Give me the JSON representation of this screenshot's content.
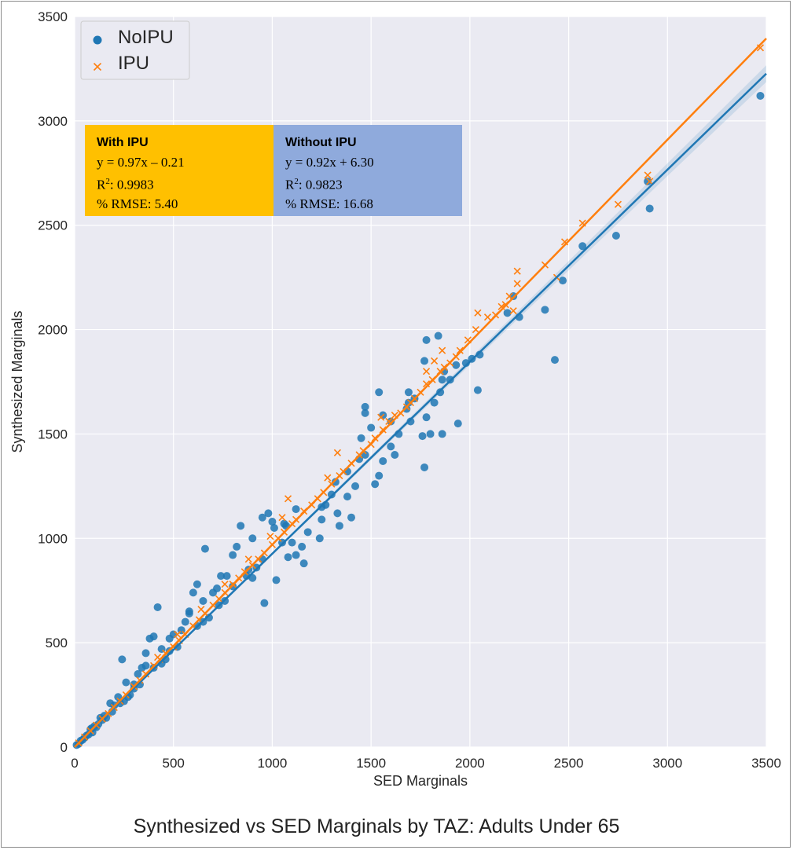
{
  "caption": "Synthesized vs SED Marginals by TAZ: Adults Under 65",
  "colors": {
    "plot_bg": "#eaeaf2",
    "grid": "#ffffff",
    "noipu": "#1f77b4",
    "ipu": "#ff7f0e",
    "box_ipu": "#ffc000",
    "box_noipu": "#8faadc"
  },
  "stats": {
    "ipu": {
      "header": "With IPU",
      "equation": "y = 0.97x – 0.21",
      "r2_prefix": "R",
      "r2_sup": "2",
      "r2_value": ": 0.9983",
      "rmse": "% RMSE: 5.40"
    },
    "noipu": {
      "header": "Without IPU",
      "equation": "y = 0.92x + 6.30",
      "r2_prefix": "R",
      "r2_sup": "2",
      "r2_value": ": 0.9823",
      "rmse": "% RMSE: 16.68"
    }
  },
  "chart_data": {
    "type": "scatter",
    "xlabel": "SED Marginals",
    "ylabel": "Synthesized Marginals",
    "xlim": [
      0,
      3500
    ],
    "ylim": [
      0,
      3500
    ],
    "xticks": [
      0,
      500,
      1000,
      1500,
      2000,
      2500,
      3000,
      3500
    ],
    "yticks": [
      0,
      500,
      1000,
      1500,
      2000,
      2500,
      3000,
      3500
    ],
    "grid": true,
    "legend_position": "top-left",
    "series": [
      {
        "name": "NoIPU",
        "marker": "circle",
        "fit": {
          "slope": 0.92,
          "intercept": 6.3
        },
        "points": [
          [
            3470,
            3120
          ],
          [
            2900,
            2710
          ],
          [
            2910,
            2580
          ],
          [
            2740,
            2450
          ],
          [
            2570,
            2400
          ],
          [
            2470,
            2235
          ],
          [
            2380,
            2095
          ],
          [
            2430,
            1855
          ],
          [
            2250,
            2060
          ],
          [
            2220,
            2160
          ],
          [
            2190,
            2080
          ],
          [
            2050,
            1880
          ],
          [
            2040,
            1710
          ],
          [
            2010,
            1860
          ],
          [
            1980,
            1840
          ],
          [
            1930,
            1830
          ],
          [
            1900,
            1760
          ],
          [
            1870,
            1800
          ],
          [
            1860,
            1760
          ],
          [
            1850,
            1700
          ],
          [
            1820,
            1650
          ],
          [
            1780,
            1950
          ],
          [
            1840,
            1970
          ],
          [
            1770,
            1850
          ],
          [
            1690,
            1700
          ],
          [
            1690,
            1650
          ],
          [
            1700,
            1560
          ],
          [
            1780,
            1580
          ],
          [
            1800,
            1500
          ],
          [
            1760,
            1490
          ],
          [
            1860,
            1500
          ],
          [
            1940,
            1550
          ],
          [
            1770,
            1340
          ],
          [
            1640,
            1500
          ],
          [
            1600,
            1440
          ],
          [
            1620,
            1400
          ],
          [
            1560,
            1370
          ],
          [
            1540,
            1300
          ],
          [
            1520,
            1260
          ],
          [
            1470,
            1600
          ],
          [
            1470,
            1630
          ],
          [
            1540,
            1700
          ],
          [
            1470,
            1400
          ],
          [
            1440,
            1380
          ],
          [
            1420,
            1250
          ],
          [
            1380,
            1200
          ],
          [
            1400,
            1100
          ],
          [
            1340,
            1060
          ],
          [
            1330,
            1120
          ],
          [
            1300,
            1210
          ],
          [
            1270,
            1160
          ],
          [
            1250,
            1090
          ],
          [
            1240,
            1000
          ],
          [
            1180,
            1030
          ],
          [
            1150,
            960
          ],
          [
            1120,
            920
          ],
          [
            1080,
            910
          ],
          [
            1070,
            1060
          ],
          [
            1050,
            980
          ],
          [
            1000,
            1080
          ],
          [
            950,
            1100
          ],
          [
            980,
            1120
          ],
          [
            1010,
            1050
          ],
          [
            950,
            900
          ],
          [
            920,
            860
          ],
          [
            900,
            810
          ],
          [
            870,
            820
          ],
          [
            840,
            1060
          ],
          [
            820,
            960
          ],
          [
            800,
            920
          ],
          [
            770,
            820
          ],
          [
            800,
            770
          ],
          [
            760,
            700
          ],
          [
            730,
            680
          ],
          [
            700,
            740
          ],
          [
            680,
            620
          ],
          [
            650,
            600
          ],
          [
            650,
            700
          ],
          [
            620,
            780
          ],
          [
            600,
            740
          ],
          [
            660,
            950
          ],
          [
            580,
            650
          ],
          [
            560,
            600
          ],
          [
            540,
            560
          ],
          [
            500,
            540
          ],
          [
            480,
            460
          ],
          [
            460,
            420
          ],
          [
            440,
            470
          ],
          [
            420,
            670
          ],
          [
            400,
            530
          ],
          [
            380,
            520
          ],
          [
            360,
            450
          ],
          [
            340,
            380
          ],
          [
            320,
            350
          ],
          [
            300,
            300
          ],
          [
            280,
            250
          ],
          [
            260,
            310
          ],
          [
            250,
            220
          ],
          [
            240,
            420
          ],
          [
            220,
            240
          ],
          [
            200,
            200
          ],
          [
            180,
            210
          ],
          [
            160,
            140
          ],
          [
            140,
            130
          ],
          [
            120,
            110
          ],
          [
            100,
            100
          ],
          [
            90,
            70
          ],
          [
            80,
            85
          ],
          [
            70,
            60
          ],
          [
            60,
            55
          ],
          [
            50,
            45
          ],
          [
            40,
            35
          ],
          [
            30,
            30
          ],
          [
            20,
            15
          ],
          [
            10,
            10
          ],
          [
            1020,
            800
          ],
          [
            960,
            690
          ],
          [
            1160,
            880
          ],
          [
            1100,
            980
          ],
          [
            1250,
            1150
          ],
          [
            1320,
            1270
          ],
          [
            1380,
            1320
          ],
          [
            1600,
            1560
          ],
          [
            1680,
            1620
          ],
          [
            1720,
            1670
          ],
          [
            1450,
            1480
          ],
          [
            1500,
            1530
          ],
          [
            1560,
            1590
          ],
          [
            1120,
            1140
          ],
          [
            1060,
            1070
          ],
          [
            900,
            1000
          ],
          [
            880,
            850
          ],
          [
            740,
            820
          ],
          [
            720,
            760
          ],
          [
            620,
            580
          ],
          [
            580,
            640
          ],
          [
            520,
            480
          ],
          [
            480,
            520
          ],
          [
            440,
            400
          ],
          [
            400,
            380
          ],
          [
            360,
            390
          ],
          [
            330,
            300
          ],
          [
            300,
            280
          ],
          [
            270,
            240
          ],
          [
            230,
            210
          ],
          [
            190,
            170
          ],
          [
            150,
            150
          ],
          [
            130,
            140
          ],
          [
            110,
            95
          ],
          [
            85,
            90
          ]
        ]
      },
      {
        "name": "IPU",
        "marker": "x",
        "fit": {
          "slope": 0.97,
          "intercept": -0.21
        },
        "points": [
          [
            3470,
            3350
          ],
          [
            2900,
            2740
          ],
          [
            2910,
            2710
          ],
          [
            2750,
            2600
          ],
          [
            2570,
            2510
          ],
          [
            2480,
            2420
          ],
          [
            2440,
            2250
          ],
          [
            2380,
            2310
          ],
          [
            2240,
            2220
          ],
          [
            2240,
            2280
          ],
          [
            2220,
            2090
          ],
          [
            2200,
            2160
          ],
          [
            2180,
            2120
          ],
          [
            2160,
            2110
          ],
          [
            2130,
            2070
          ],
          [
            2090,
            2060
          ],
          [
            2040,
            2080
          ],
          [
            2030,
            2000
          ],
          [
            1990,
            1950
          ],
          [
            1950,
            1900
          ],
          [
            1930,
            1870
          ],
          [
            1900,
            1840
          ],
          [
            1870,
            1820
          ],
          [
            1850,
            1800
          ],
          [
            1810,
            1760
          ],
          [
            1780,
            1740
          ],
          [
            1750,
            1700
          ],
          [
            1720,
            1670
          ],
          [
            1700,
            1650
          ],
          [
            1680,
            1630
          ],
          [
            1650,
            1600
          ],
          [
            1620,
            1590
          ],
          [
            1590,
            1560
          ],
          [
            1560,
            1520
          ],
          [
            1520,
            1480
          ],
          [
            1500,
            1450
          ],
          [
            1460,
            1420
          ],
          [
            1440,
            1400
          ],
          [
            1400,
            1360
          ],
          [
            1360,
            1320
          ],
          [
            1340,
            1300
          ],
          [
            1300,
            1260
          ],
          [
            1260,
            1220
          ],
          [
            1230,
            1190
          ],
          [
            1200,
            1160
          ],
          [
            1160,
            1130
          ],
          [
            1120,
            1090
          ],
          [
            1100,
            1070
          ],
          [
            1060,
            1030
          ],
          [
            1030,
            1000
          ],
          [
            1000,
            970
          ],
          [
            960,
            930
          ],
          [
            930,
            900
          ],
          [
            900,
            870
          ],
          [
            860,
            840
          ],
          [
            830,
            810
          ],
          [
            800,
            780
          ],
          [
            760,
            740
          ],
          [
            730,
            710
          ],
          [
            700,
            680
          ],
          [
            660,
            640
          ],
          [
            630,
            610
          ],
          [
            600,
            580
          ],
          [
            560,
            540
          ],
          [
            530,
            510
          ],
          [
            500,
            480
          ],
          [
            460,
            450
          ],
          [
            430,
            420
          ],
          [
            400,
            390
          ],
          [
            360,
            350
          ],
          [
            330,
            320
          ],
          [
            300,
            290
          ],
          [
            260,
            250
          ],
          [
            230,
            220
          ],
          [
            200,
            190
          ],
          [
            170,
            160
          ],
          [
            140,
            135
          ],
          [
            110,
            105
          ],
          [
            80,
            78
          ],
          [
            50,
            48
          ],
          [
            20,
            20
          ],
          [
            1820,
            1850
          ],
          [
            1860,
            1900
          ],
          [
            1780,
            1800
          ],
          [
            1550,
            1580
          ],
          [
            1330,
            1410
          ],
          [
            1280,
            1290
          ],
          [
            1080,
            1190
          ],
          [
            1050,
            1100
          ],
          [
            990,
            1010
          ],
          [
            880,
            900
          ],
          [
            760,
            780
          ],
          [
            640,
            660
          ],
          [
            520,
            540
          ],
          [
            420,
            430
          ]
        ]
      }
    ]
  }
}
